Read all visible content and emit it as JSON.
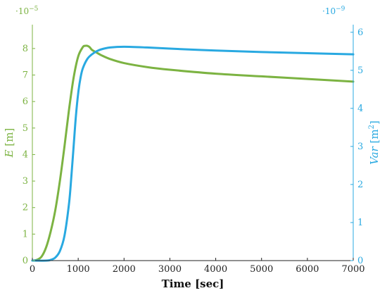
{
  "chart_data": {
    "type": "line",
    "xlabel": "Time [sec]",
    "xlim": [
      0,
      7000
    ],
    "x_ticks": [
      "0",
      "1000",
      "2000",
      "3000",
      "4000",
      "5000",
      "6000",
      "7000"
    ],
    "left_axis": {
      "label_var": "E",
      "label_unit": "[m]",
      "multiplier_base": "·10",
      "multiplier_exp": "−5",
      "ylim": [
        0,
        8.9
      ],
      "ticks": [
        "0",
        "1",
        "2",
        "3",
        "4",
        "5",
        "6",
        "7",
        "8"
      ],
      "color": "#7cb342"
    },
    "right_axis": {
      "label_var": "Var",
      "label_unit": "[m",
      "label_unit_exp": "2",
      "label_unit_close": "]",
      "multiplier_base": "·10",
      "multiplier_exp": "−9",
      "ylim": [
        0,
        6.2
      ],
      "ticks": [
        "0",
        "1",
        "2",
        "3",
        "4",
        "5",
        "6"
      ],
      "color": "#29a9e1"
    },
    "series": [
      {
        "axis": "left",
        "color": "#7cb342",
        "x": [
          0,
          100,
          200,
          300,
          400,
          500,
          600,
          700,
          800,
          900,
          1000,
          1100,
          1150,
          1200,
          1250,
          1300,
          1400,
          1500,
          1700,
          2000,
          2500,
          3000,
          4000,
          5000,
          6000,
          7000
        ],
        "y": [
          0,
          0.03,
          0.15,
          0.5,
          1.1,
          1.9,
          3.0,
          4.3,
          5.7,
          6.9,
          7.7,
          8.05,
          8.1,
          8.1,
          8.05,
          7.95,
          7.85,
          7.75,
          7.6,
          7.45,
          7.3,
          7.2,
          7.05,
          6.95,
          6.85,
          6.75
        ]
      },
      {
        "axis": "right",
        "color": "#29a9e1",
        "x": [
          0,
          300,
          400,
          500,
          600,
          700,
          800,
          850,
          900,
          950,
          1000,
          1050,
          1100,
          1200,
          1300,
          1400,
          1500,
          1700,
          2000,
          2500,
          3000,
          4000,
          5000,
          6000,
          7000
        ],
        "y": [
          0,
          0,
          0.02,
          0.08,
          0.25,
          0.65,
          1.5,
          2.2,
          3.0,
          3.8,
          4.4,
          4.8,
          5.05,
          5.3,
          5.42,
          5.5,
          5.55,
          5.6,
          5.62,
          5.6,
          5.57,
          5.52,
          5.48,
          5.45,
          5.42
        ]
      }
    ]
  }
}
